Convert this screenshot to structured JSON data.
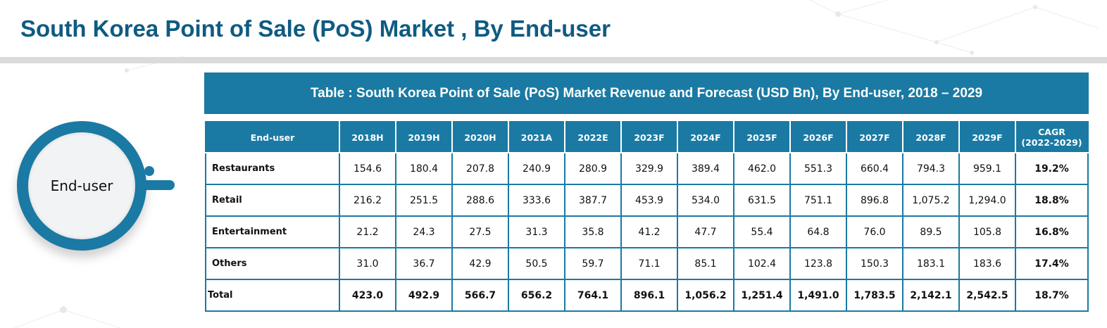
{
  "header": {
    "title": "South Korea Point of Sale (PoS) Market , By End-user"
  },
  "badge": {
    "label": "End-user"
  },
  "colors": {
    "primary": "#1a7aa3",
    "title": "#0f5b82",
    "rule": "#d9dbdc"
  },
  "chart_data": {
    "type": "table",
    "title": "Table : South Korea Point of Sale (PoS) Market Revenue and Forecast (USD Bn), By End-user, 2018 – 2029",
    "columns": [
      "End-user",
      "2018H",
      "2019H",
      "2020H",
      "2021A",
      "2022E",
      "2023F",
      "2024F",
      "2025F",
      "2026F",
      "2027F",
      "2028F",
      "2029F",
      "CAGR\n(2022-2029)"
    ],
    "rows": [
      {
        "label": "Restaurants",
        "values": [
          "154.6",
          "180.4",
          "207.8",
          "240.9",
          "280.9",
          "329.9",
          "389.4",
          "462.0",
          "551.3",
          "660.4",
          "794.3",
          "959.1"
        ],
        "cagr": "19.2%"
      },
      {
        "label": "Retail",
        "values": [
          "216.2",
          "251.5",
          "288.6",
          "333.6",
          "387.7",
          "453.9",
          "534.0",
          "631.5",
          "751.1",
          "896.8",
          "1,075.2",
          "1,294.0"
        ],
        "cagr": "18.8%"
      },
      {
        "label": "Entertainment",
        "values": [
          "21.2",
          "24.3",
          "27.5",
          "31.3",
          "35.8",
          "41.2",
          "47.7",
          "55.4",
          "64.8",
          "76.0",
          "89.5",
          "105.8"
        ],
        "cagr": "16.8%"
      },
      {
        "label": "Others",
        "values": [
          "31.0",
          "36.7",
          "42.9",
          "50.5",
          "59.7",
          "71.1",
          "85.1",
          "102.4",
          "123.8",
          "150.3",
          "183.1",
          "183.6"
        ],
        "cagr": "17.4%"
      }
    ],
    "total": {
      "label": "Total",
      "values": [
        "423.0",
        "492.9",
        "566.7",
        "656.2",
        "764.1",
        "896.1",
        "1,056.2",
        "1,251.4",
        "1,491.0",
        "1,783.5",
        "2,142.1",
        "2,542.5"
      ],
      "cagr": "18.7%"
    }
  }
}
